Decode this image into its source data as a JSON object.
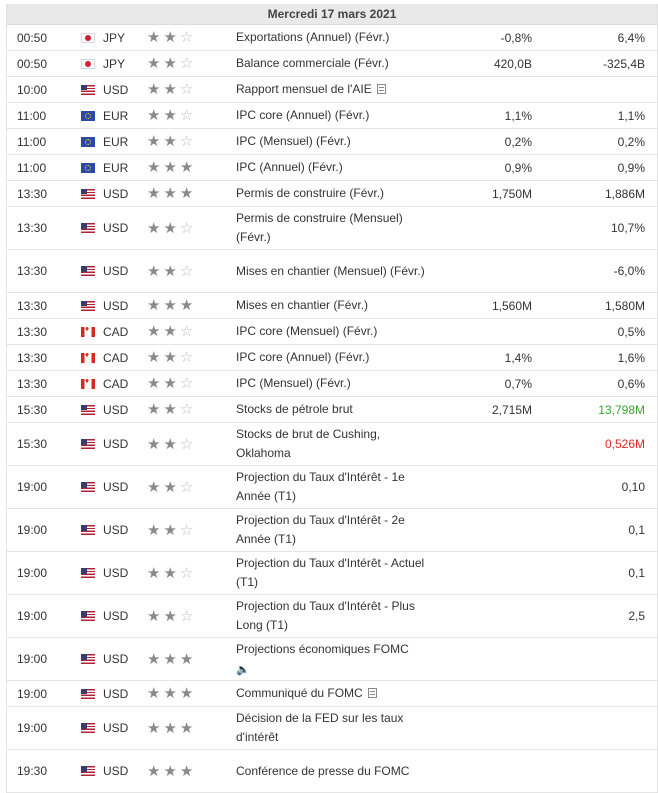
{
  "calendar": {
    "date": "Mercredi 17 mars 2021",
    "rows": [
      {
        "time": "00:50",
        "flag": "jpy",
        "currency": "JPY",
        "importance": 2,
        "event": "Exportations (Annuel) (Févr.)",
        "icon": "",
        "actual": "-0,8%",
        "previous": "6,4%",
        "height": 26
      },
      {
        "time": "00:50",
        "flag": "jpy",
        "currency": "JPY",
        "importance": 2,
        "event": "Balance commerciale (Févr.)",
        "icon": "",
        "actual": "420,0B",
        "previous": "-325,4B",
        "height": 26
      },
      {
        "time": "10:00",
        "flag": "usd",
        "currency": "USD",
        "importance": 2,
        "event": "Rapport mensuel de l'AIE",
        "icon": "document-icon",
        "actual": "",
        "previous": "",
        "height": 26
      },
      {
        "time": "11:00",
        "flag": "eur",
        "currency": "EUR",
        "importance": 2,
        "event": "IPC core (Annuel) (Févr.)",
        "icon": "",
        "actual": "1,1%",
        "previous": "1,1%",
        "height": 26
      },
      {
        "time": "11:00",
        "flag": "eur",
        "currency": "EUR",
        "importance": 2,
        "event": "IPC (Mensuel) (Févr.)",
        "icon": "",
        "actual": "0,2%",
        "previous": "0,2%",
        "height": 26
      },
      {
        "time": "11:00",
        "flag": "eur",
        "currency": "EUR",
        "importance": 3,
        "event": "IPC (Annuel) (Févr.)",
        "icon": "",
        "actual": "0,9%",
        "previous": "0,9%",
        "height": 26
      },
      {
        "time": "13:30",
        "flag": "usd",
        "currency": "USD",
        "importance": 3,
        "event": "Permis de construire (Févr.)",
        "icon": "",
        "actual": "1,750M",
        "previous": "1,886M",
        "height": 26
      },
      {
        "time": "13:30",
        "flag": "usd",
        "currency": "USD",
        "importance": 2,
        "event": "Permis de construire (Mensuel) (Févr.)",
        "icon": "",
        "actual": "",
        "previous": "10,7%",
        "height": 43
      },
      {
        "time": "13:30",
        "flag": "usd",
        "currency": "USD",
        "importance": 2,
        "event": "Mises en chantier (Mensuel) (Févr.)",
        "icon": "",
        "actual": "",
        "previous": "-6,0%",
        "height": 43
      },
      {
        "time": "13:30",
        "flag": "usd",
        "currency": "USD",
        "importance": 3,
        "event": "Mises en chantier (Févr.)",
        "icon": "",
        "actual": "1,560M",
        "previous": "1,580M",
        "height": 26
      },
      {
        "time": "13:30",
        "flag": "cad",
        "currency": "CAD",
        "importance": 2,
        "event": "IPC core (Mensuel) (Févr.)",
        "icon": "",
        "actual": "",
        "previous": "0,5%",
        "height": 26
      },
      {
        "time": "13:30",
        "flag": "cad",
        "currency": "CAD",
        "importance": 2,
        "event": "IPC core (Annuel) (Févr.)",
        "icon": "",
        "actual": "1,4%",
        "previous": "1,6%",
        "height": 26
      },
      {
        "time": "13:30",
        "flag": "cad",
        "currency": "CAD",
        "importance": 2,
        "event": "IPC (Mensuel) (Févr.)",
        "icon": "",
        "actual": "0,7%",
        "previous": "0,6%",
        "height": 26
      },
      {
        "time": "15:30",
        "flag": "usd",
        "currency": "USD",
        "importance": 2,
        "event": "Stocks de pétrole brut",
        "icon": "",
        "actual": "2,715M",
        "previous": "13,798M",
        "previousColor": "green",
        "height": 26
      },
      {
        "time": "15:30",
        "flag": "usd",
        "currency": "USD",
        "importance": 2,
        "event": "Stocks de brut de Cushing, Oklahoma",
        "icon": "",
        "actual": "",
        "previous": "0,526M",
        "previousColor": "red",
        "height": 43
      },
      {
        "time": "19:00",
        "flag": "usd",
        "currency": "USD",
        "importance": 2,
        "event": "Projection du Taux d'Intérêt - 1e Année (T1)",
        "icon": "",
        "actual": "",
        "previous": "0,10",
        "height": 43
      },
      {
        "time": "19:00",
        "flag": "usd",
        "currency": "USD",
        "importance": 2,
        "event": "Projection du Taux d'Intérêt - 2e Année (T1)",
        "icon": "",
        "actual": "",
        "previous": "0,1",
        "height": 43
      },
      {
        "time": "19:00",
        "flag": "usd",
        "currency": "USD",
        "importance": 2,
        "event": "Projection du Taux d'Intérêt - Actuel (T1)",
        "icon": "",
        "actual": "",
        "previous": "0,1",
        "height": 43
      },
      {
        "time": "19:00",
        "flag": "usd",
        "currency": "USD",
        "importance": 2,
        "event": "Projection du Taux d'Intérêt - Plus Long (T1)",
        "icon": "",
        "actual": "",
        "previous": "2,5",
        "height": 43
      },
      {
        "time": "19:00",
        "flag": "usd",
        "currency": "USD",
        "importance": 3,
        "event": "Projections économiques FOMC",
        "icon": "speaker-icon",
        "actual": "",
        "previous": "",
        "height": 43
      },
      {
        "time": "19:00",
        "flag": "usd",
        "currency": "USD",
        "importance": 3,
        "event": "Communiqué du FOMC",
        "icon": "document-icon",
        "actual": "",
        "previous": "",
        "height": 26
      },
      {
        "time": "19:00",
        "flag": "usd",
        "currency": "USD",
        "importance": 3,
        "event": "Décision de la FED sur les taux d'intérêt",
        "icon": "",
        "actual": "",
        "previous": "",
        "height": 43
      },
      {
        "time": "19:30",
        "flag": "usd",
        "currency": "USD",
        "importance": 3,
        "event": "Conférence de presse du FOMC",
        "icon": "",
        "actual": "",
        "previous": "",
        "height": 43
      }
    ]
  }
}
